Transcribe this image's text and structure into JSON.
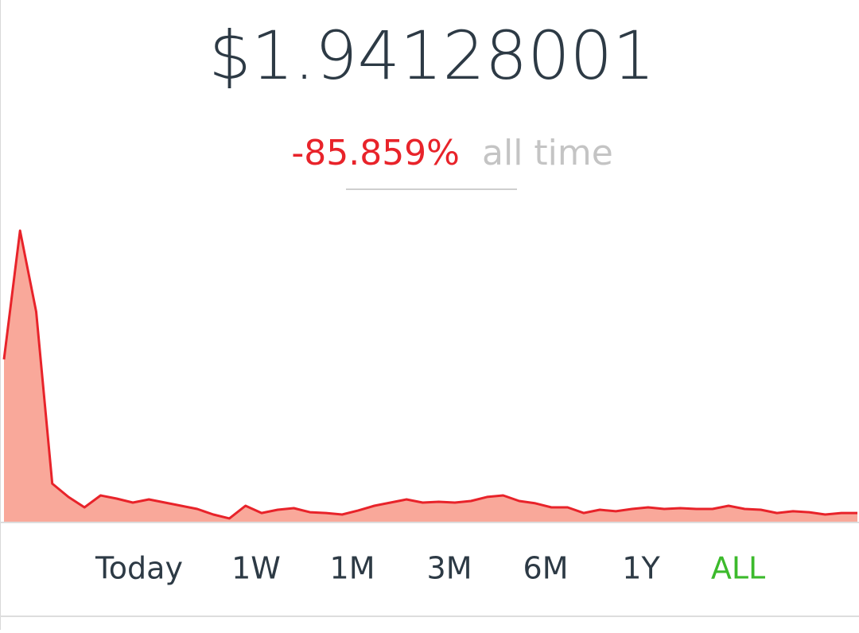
{
  "header": {
    "price": "$1.94128001",
    "change": "-85.859%",
    "change_label": "all time"
  },
  "chart_data": {
    "type": "area",
    "color": "#e8232a",
    "fill": "#f9a89a",
    "values": [
      13.74,
      23.63,
      17.4,
      4.2,
      3.17,
      2.37,
      3.29,
      3.04,
      2.74,
      2.98,
      2.74,
      2.49,
      2.25,
      1.82,
      1.52,
      2.49,
      1.94,
      2.19,
      2.31,
      2.0,
      1.94,
      1.82,
      2.13,
      2.49,
      2.74,
      2.98,
      2.74,
      2.8,
      2.74,
      2.86,
      3.17,
      3.29,
      2.86,
      2.68,
      2.37,
      2.37,
      1.94,
      2.19,
      2.07,
      2.25,
      2.37,
      2.25,
      2.31,
      2.25,
      2.25,
      2.49,
      2.25,
      2.19,
      1.94,
      2.07,
      2.0,
      1.82,
      1.94,
      1.94
    ],
    "ylim": [
      1.21,
      23.63
    ]
  },
  "ranges": {
    "items": [
      "Today",
      "1W",
      "1M",
      "3M",
      "6M",
      "1Y",
      "ALL"
    ],
    "selected_index": 6,
    "color": "#2d3a45",
    "selected_color": "#3cba2c"
  }
}
